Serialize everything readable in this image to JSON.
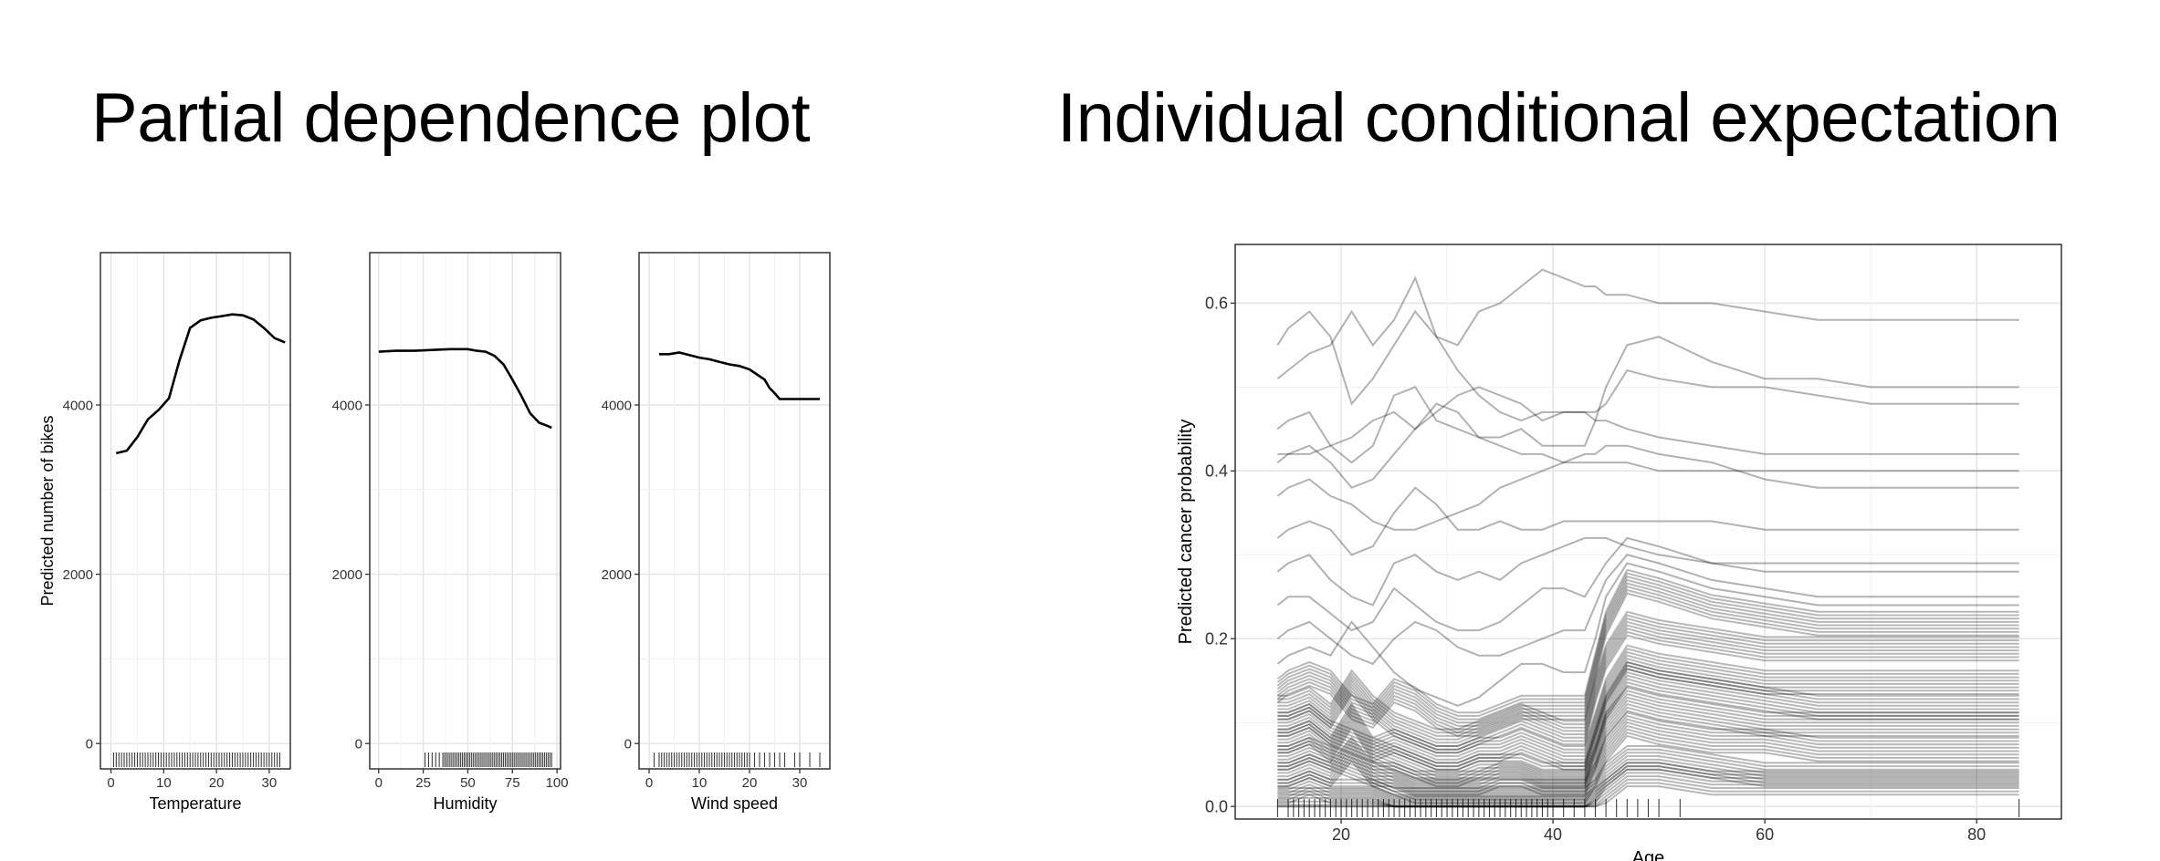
{
  "titles": {
    "pdp": "Partial dependence plot",
    "ice": "Individual conditional expectation"
  },
  "chart_data": [
    {
      "type": "line",
      "panel": "temperature",
      "xlabel": "Temperature",
      "ylabel": "Predicted number of bikes",
      "xlim": [
        -2,
        34
      ],
      "ylim": [
        -300,
        5800
      ],
      "xticks": [
        0,
        10,
        20,
        30
      ],
      "yticks": [
        0,
        2000,
        4000
      ],
      "ytick_labels_shown": true,
      "x": [
        1,
        3,
        5,
        7,
        9,
        11,
        13,
        15,
        17,
        19,
        21,
        23,
        25,
        27,
        29,
        31,
        33
      ],
      "y": [
        3430,
        3460,
        3620,
        3830,
        3940,
        4080,
        4530,
        4910,
        5000,
        5030,
        5050,
        5070,
        5060,
        5010,
        4910,
        4790,
        4740
      ],
      "rug": [
        0.5,
        1,
        1.5,
        2,
        2.5,
        3,
        3.5,
        4,
        4.5,
        5,
        5.5,
        6,
        6.5,
        7,
        7.5,
        8,
        8.5,
        9,
        9.5,
        10,
        10.5,
        11,
        11.5,
        12,
        12.5,
        13,
        13.5,
        14,
        14.5,
        15,
        15.5,
        16,
        16.5,
        17,
        17.5,
        18,
        18.5,
        19,
        19.5,
        20,
        20.5,
        21,
        21.5,
        22,
        22.5,
        23,
        23.5,
        24,
        24.5,
        25,
        25.5,
        26,
        26.5,
        27,
        27.5,
        28,
        28.5,
        29,
        29.5,
        30,
        30.5,
        31,
        31.5,
        32
      ]
    },
    {
      "type": "line",
      "panel": "humidity",
      "xlabel": "Humidity",
      "ylabel": "",
      "xlim": [
        -5,
        102
      ],
      "ylim": [
        -300,
        5800
      ],
      "xticks": [
        0,
        25,
        50,
        75,
        100
      ],
      "yticks": [
        0,
        2000,
        4000
      ],
      "ytick_labels_shown": true,
      "x": [
        0,
        10,
        20,
        30,
        40,
        50,
        55,
        60,
        65,
        70,
        75,
        80,
        85,
        90,
        95,
        97
      ],
      "y": [
        4630,
        4640,
        4640,
        4650,
        4660,
        4660,
        4640,
        4630,
        4580,
        4480,
        4300,
        4110,
        3900,
        3790,
        3750,
        3730
      ],
      "rug": [
        26,
        28,
        30,
        32,
        34,
        36,
        37,
        38,
        39,
        40,
        41,
        42,
        43,
        44,
        45,
        46,
        47,
        48,
        49,
        50,
        51,
        52,
        53,
        54,
        55,
        56,
        57,
        58,
        59,
        60,
        61,
        62,
        63,
        64,
        65,
        66,
        67,
        68,
        69,
        70,
        71,
        72,
        73,
        74,
        75,
        76,
        77,
        78,
        79,
        80,
        81,
        82,
        83,
        84,
        85,
        86,
        87,
        88,
        89,
        90,
        91,
        92,
        93,
        94,
        95,
        96,
        97
      ]
    },
    {
      "type": "line",
      "panel": "wind_speed",
      "xlabel": "Wind speed",
      "ylabel": "",
      "xlim": [
        -2,
        36
      ],
      "ylim": [
        -300,
        5800
      ],
      "xticks": [
        0,
        10,
        20,
        30
      ],
      "yticks": [
        0,
        2000,
        4000
      ],
      "ytick_labels_shown": true,
      "x": [
        2,
        4,
        6,
        8,
        10,
        12,
        14,
        16,
        18,
        20,
        22,
        23,
        24,
        25,
        26,
        28,
        30,
        32,
        34
      ],
      "y": [
        4600,
        4600,
        4620,
        4590,
        4560,
        4540,
        4510,
        4480,
        4460,
        4420,
        4340,
        4300,
        4200,
        4140,
        4070,
        4070,
        4070,
        4070,
        4070
      ],
      "rug": [
        1,
        2,
        2.5,
        3,
        3.5,
        4,
        4.5,
        5,
        5.5,
        6,
        6.5,
        7,
        7.5,
        8,
        8.5,
        9,
        9.5,
        10,
        10.5,
        11,
        11.5,
        12,
        12.5,
        13,
        13.5,
        14,
        14.5,
        15,
        15.5,
        16,
        16.5,
        17,
        17.5,
        18,
        18.5,
        19,
        19.5,
        20,
        21,
        22,
        23,
        24,
        25,
        26,
        27,
        29,
        30,
        32,
        34
      ]
    },
    {
      "type": "line",
      "panel": "ice_age",
      "xlabel": "Age",
      "ylabel": "Predicted cancer probability",
      "xlim": [
        10,
        88
      ],
      "ylim": [
        -0.015,
        0.67
      ],
      "xticks": [
        20,
        40,
        60,
        80
      ],
      "yticks": [
        0.0,
        0.2,
        0.4,
        0.6
      ],
      "ytick_labels": [
        "0.0",
        "0.2",
        "0.4",
        "0.6"
      ],
      "x": [
        14,
        15,
        17,
        19,
        21,
        23,
        25,
        27,
        29,
        31,
        33,
        35,
        37,
        39,
        41,
        43,
        44,
        45,
        47,
        50,
        55,
        60,
        65,
        70,
        84
      ],
      "series": [
        {
          "values": [
            0.55,
            0.57,
            0.59,
            0.56,
            0.48,
            0.51,
            0.55,
            0.59,
            0.56,
            0.52,
            0.49,
            0.47,
            0.46,
            0.47,
            0.47,
            0.47,
            0.47,
            0.48,
            0.52,
            0.51,
            0.5,
            0.5,
            0.49,
            0.48,
            0.48
          ]
        },
        {
          "values": [
            0.51,
            0.52,
            0.54,
            0.55,
            0.59,
            0.55,
            0.58,
            0.63,
            0.56,
            0.55,
            0.59,
            0.6,
            0.62,
            0.64,
            0.63,
            0.62,
            0.62,
            0.61,
            0.61,
            0.6,
            0.6,
            0.59,
            0.58,
            0.58,
            0.58
          ]
        },
        {
          "values": [
            0.45,
            0.46,
            0.47,
            0.43,
            0.41,
            0.43,
            0.49,
            0.5,
            0.46,
            0.45,
            0.44,
            0.44,
            0.45,
            0.43,
            0.43,
            0.43,
            0.46,
            0.5,
            0.55,
            0.56,
            0.53,
            0.51,
            0.51,
            0.5,
            0.5
          ]
        },
        {
          "values": [
            0.41,
            0.42,
            0.42,
            0.43,
            0.44,
            0.46,
            0.47,
            0.45,
            0.47,
            0.49,
            0.5,
            0.49,
            0.48,
            0.46,
            0.47,
            0.47,
            0.46,
            0.46,
            0.45,
            0.44,
            0.43,
            0.42,
            0.42,
            0.42,
            0.42
          ]
        },
        {
          "values": [
            0.42,
            0.42,
            0.43,
            0.41,
            0.38,
            0.39,
            0.42,
            0.45,
            0.48,
            0.47,
            0.44,
            0.43,
            0.42,
            0.42,
            0.41,
            0.41,
            0.41,
            0.41,
            0.41,
            0.4,
            0.4,
            0.4,
            0.4,
            0.4,
            0.4
          ]
        },
        {
          "values": [
            0.37,
            0.38,
            0.39,
            0.37,
            0.36,
            0.34,
            0.33,
            0.33,
            0.34,
            0.35,
            0.36,
            0.38,
            0.39,
            0.4,
            0.41,
            0.42,
            0.42,
            0.43,
            0.43,
            0.42,
            0.41,
            0.39,
            0.38,
            0.38,
            0.38
          ]
        },
        {
          "values": [
            0.32,
            0.33,
            0.34,
            0.33,
            0.3,
            0.31,
            0.35,
            0.38,
            0.36,
            0.33,
            0.33,
            0.34,
            0.33,
            0.33,
            0.34,
            0.34,
            0.34,
            0.34,
            0.34,
            0.34,
            0.34,
            0.33,
            0.33,
            0.33,
            0.33
          ]
        },
        {
          "values": [
            0.28,
            0.29,
            0.3,
            0.27,
            0.25,
            0.24,
            0.29,
            0.3,
            0.28,
            0.27,
            0.28,
            0.27,
            0.29,
            0.3,
            0.31,
            0.32,
            0.32,
            0.32,
            0.31,
            0.3,
            0.29,
            0.29,
            0.29,
            0.29,
            0.29
          ]
        },
        {
          "values": [
            0.24,
            0.25,
            0.25,
            0.23,
            0.21,
            0.22,
            0.26,
            0.24,
            0.22,
            0.21,
            0.21,
            0.22,
            0.24,
            0.26,
            0.26,
            0.25,
            0.27,
            0.29,
            0.32,
            0.31,
            0.29,
            0.28,
            0.28,
            0.28,
            0.28
          ]
        },
        {
          "values": [
            0.2,
            0.21,
            0.22,
            0.2,
            0.18,
            0.17,
            0.2,
            0.22,
            0.21,
            0.19,
            0.18,
            0.18,
            0.19,
            0.2,
            0.21,
            0.21,
            0.24,
            0.27,
            0.3,
            0.29,
            0.27,
            0.26,
            0.25,
            0.25,
            0.25
          ]
        },
        {
          "values": [
            0.17,
            0.18,
            0.19,
            0.18,
            0.22,
            0.19,
            0.16,
            0.14,
            0.13,
            0.12,
            0.13,
            0.15,
            0.17,
            0.17,
            0.16,
            0.16,
            0.2,
            0.25,
            0.29,
            0.28,
            0.26,
            0.25,
            0.24,
            0.24,
            0.24
          ]
        },
        {
          "values": [
            0.14,
            0.15,
            0.16,
            0.15,
            0.12,
            0.11,
            0.14,
            0.13,
            0.11,
            0.1,
            0.1,
            0.11,
            0.12,
            0.12,
            0.12,
            0.12,
            0.17,
            0.22,
            0.27,
            0.26,
            0.24,
            0.23,
            0.22,
            0.22,
            0.22
          ]
        },
        {
          "values": [
            0.12,
            0.12,
            0.13,
            0.11,
            0.15,
            0.12,
            0.1,
            0.09,
            0.08,
            0.08,
            0.09,
            0.1,
            0.11,
            0.1,
            0.09,
            0.09,
            0.14,
            0.18,
            0.22,
            0.21,
            0.2,
            0.19,
            0.19,
            0.19,
            0.19
          ]
        },
        {
          "values": [
            0.1,
            0.1,
            0.11,
            0.09,
            0.08,
            0.07,
            0.08,
            0.07,
            0.06,
            0.06,
            0.07,
            0.07,
            0.08,
            0.07,
            0.06,
            0.06,
            0.1,
            0.14,
            0.18,
            0.17,
            0.16,
            0.15,
            0.15,
            0.15,
            0.15
          ]
        },
        {
          "values": [
            0.08,
            0.08,
            0.09,
            0.07,
            0.11,
            0.07,
            0.06,
            0.05,
            0.04,
            0.04,
            0.05,
            0.05,
            0.05,
            0.04,
            0.04,
            0.04,
            0.08,
            0.12,
            0.16,
            0.15,
            0.14,
            0.13,
            0.12,
            0.12,
            0.12
          ]
        },
        {
          "values": [
            0.06,
            0.06,
            0.07,
            0.06,
            0.05,
            0.04,
            0.04,
            0.03,
            0.03,
            0.03,
            0.03,
            0.04,
            0.04,
            0.03,
            0.03,
            0.03,
            0.06,
            0.1,
            0.13,
            0.12,
            0.11,
            0.1,
            0.1,
            0.1,
            0.1
          ]
        },
        {
          "values": [
            0.04,
            0.04,
            0.05,
            0.04,
            0.07,
            0.04,
            0.03,
            0.02,
            0.02,
            0.02,
            0.02,
            0.02,
            0.02,
            0.02,
            0.02,
            0.02,
            0.04,
            0.07,
            0.1,
            0.09,
            0.08,
            0.08,
            0.07,
            0.07,
            0.07
          ]
        },
        {
          "values": [
            0.02,
            0.02,
            0.03,
            0.02,
            0.02,
            0.02,
            0.01,
            0.01,
            0.01,
            0.01,
            0.01,
            0.01,
            0.01,
            0.01,
            0.01,
            0.01,
            0.02,
            0.04,
            0.06,
            0.06,
            0.05,
            0.04,
            0.04,
            0.04,
            0.04
          ]
        },
        {
          "values": [
            0.01,
            0.01,
            0.01,
            0.01,
            0.01,
            0.01,
            0.0,
            0.0,
            0.0,
            0.0,
            0.0,
            0.0,
            0.0,
            0.0,
            0.0,
            0.0,
            0.01,
            0.02,
            0.04,
            0.04,
            0.03,
            0.03,
            0.03,
            0.03,
            0.03
          ]
        }
      ],
      "rug": [
        14,
        15,
        15.5,
        16,
        16.5,
        17,
        17.5,
        18,
        18.5,
        19,
        19.5,
        20,
        20.5,
        21,
        21.5,
        22,
        22.5,
        23,
        23.5,
        24,
        24.5,
        25,
        25.5,
        26,
        26.5,
        27,
        27.5,
        28,
        28.5,
        29,
        29.5,
        30,
        30.5,
        31,
        31.5,
        32,
        32.5,
        33,
        33.5,
        34,
        34.5,
        35,
        35.5,
        36,
        36.5,
        37,
        37.5,
        38,
        38.5,
        39,
        39.5,
        40,
        41,
        42,
        43,
        44,
        45,
        46,
        47,
        48,
        49,
        50,
        52,
        84
      ]
    }
  ]
}
